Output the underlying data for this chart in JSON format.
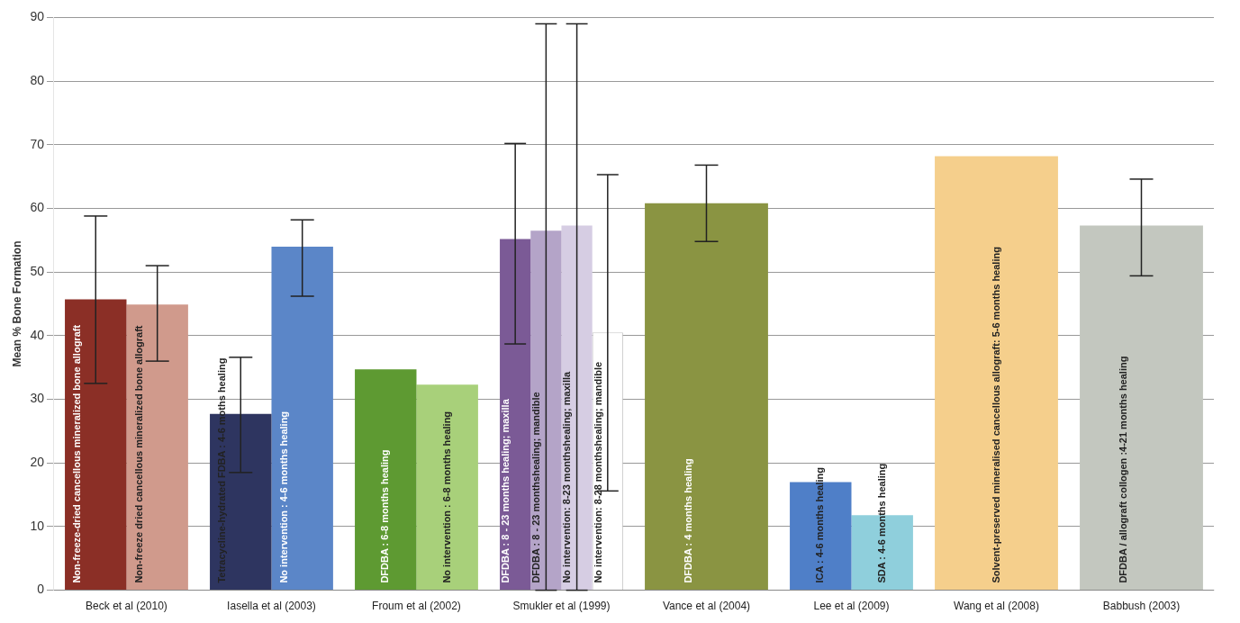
{
  "chart_data": {
    "type": "bar",
    "ylabel": "Mean % Bone Formation",
    "categories": [
      "Beck et al (2010)",
      "Iasella et al (2003)",
      "Froum et al (2002)",
      "Smukler et al (1999)",
      "Vance et al (2004)",
      "Lee et al (2009)",
      "Wang et al (2008)",
      "Babbush (2003)"
    ],
    "series": [
      {
        "name": "Non-freeze-dried cancellous mineralized bone allograft",
        "color": "#8b2f26",
        "values": [
          45.7,
          null,
          null,
          null,
          null,
          null,
          null,
          null
        ],
        "errors": [
          [
            32.5,
            58.8
          ],
          null,
          null,
          null,
          null,
          null,
          null,
          null
        ]
      },
      {
        "name": "Non-freeze dried cancellous mineralized bone allograft",
        "color": "#d09a8c",
        "values": [
          44.9,
          null,
          null,
          null,
          null,
          null,
          null,
          null
        ],
        "errors": [
          [
            36.0,
            51.0
          ],
          null,
          null,
          null,
          null,
          null,
          null,
          null
        ]
      },
      {
        "name": "Tetracycline-hydrated FDBA : 4-6 moths healing",
        "color": "#2e3560",
        "values": [
          null,
          27.7,
          null,
          null,
          null,
          null,
          null,
          null
        ],
        "errors": [
          null,
          [
            18.5,
            36.6
          ],
          null,
          null,
          null,
          null,
          null,
          null
        ]
      },
      {
        "name": "No intervention : 4-6 months healing",
        "color": "#5b86c8",
        "values": [
          null,
          54.0,
          null,
          null,
          null,
          null,
          null,
          null
        ],
        "errors": [
          null,
          [
            46.2,
            58.2
          ],
          null,
          null,
          null,
          null,
          null,
          null
        ]
      },
      {
        "name": "DFDBA : 6-8 months healing",
        "color": "#5e9a32",
        "values": [
          null,
          null,
          34.7,
          null,
          null,
          null,
          null,
          null
        ]
      },
      {
        "name": "No intervention : 6-8 months healing",
        "color": "#a8d07a",
        "values": [
          null,
          null,
          32.3,
          null,
          null,
          null,
          null,
          null
        ]
      },
      {
        "name": "DFDBA : 8 - 23 months healing; maxilla",
        "color": "#7b5a96",
        "values": [
          null,
          null,
          null,
          55.2,
          null,
          null,
          null,
          null
        ],
        "errors": [
          null,
          null,
          null,
          [
            38.7,
            70.2
          ],
          null,
          null,
          null,
          null
        ]
      },
      {
        "name": "DFDBA : 8 - 23 monthshealing; mandible",
        "color": "#b4a4c8",
        "values": [
          null,
          null,
          null,
          56.5,
          null,
          null,
          null,
          null
        ],
        "errors": [
          null,
          null,
          null,
          [
            0,
            89
          ],
          null,
          null,
          null,
          null
        ]
      },
      {
        "name": "No intervention: 8-23 monthshealing; maxilla",
        "color": "#d6cde3",
        "values": [
          null,
          null,
          null,
          57.3,
          null,
          null,
          null,
          null
        ],
        "errors": [
          null,
          null,
          null,
          [
            0,
            89
          ],
          null,
          null,
          null,
          null
        ]
      },
      {
        "name": "No intervention: 8-28 monthshealing; mandible",
        "color": "#ffffff",
        "values": [
          null,
          null,
          null,
          40.5,
          null,
          null,
          null,
          null
        ],
        "errors": [
          null,
          null,
          null,
          [
            15.6,
            65.3
          ],
          null,
          null,
          null,
          null
        ]
      },
      {
        "name": "DFDBA : 4 months healing",
        "color": "#8a9442",
        "values": [
          null,
          null,
          null,
          null,
          60.8,
          null,
          null,
          null
        ],
        "errors": [
          null,
          null,
          null,
          null,
          [
            54.8,
            66.8
          ],
          null,
          null,
          null
        ]
      },
      {
        "name": "ICA : 4-6 months healing",
        "color": "#4f7fc8",
        "values": [
          null,
          null,
          null,
          null,
          null,
          17.0,
          null,
          null
        ]
      },
      {
        "name": "SDA : 4-6 months healing",
        "color": "#8fcfdc",
        "values": [
          null,
          null,
          null,
          null,
          null,
          11.8,
          null,
          null
        ]
      },
      {
        "name": "Solvent-preserved mineralised cancellous allograft: 5-6 months healing",
        "color": "#f5cf8c",
        "values": [
          null,
          null,
          null,
          null,
          null,
          null,
          68.2,
          null
        ]
      },
      {
        "name": "DFDBA / allograft collogen :4-21 months healing",
        "color": "#c3c7bf",
        "values": [
          null,
          null,
          null,
          null,
          null,
          null,
          null,
          57.3
        ],
        "errors": [
          null,
          null,
          null,
          null,
          null,
          null,
          null,
          [
            49.4,
            64.6
          ]
        ]
      }
    ],
    "ylim": [
      0,
      90
    ],
    "yticks": [
      0,
      10,
      20,
      30,
      40,
      50,
      60,
      70,
      80,
      90
    ],
    "grid": "y"
  }
}
